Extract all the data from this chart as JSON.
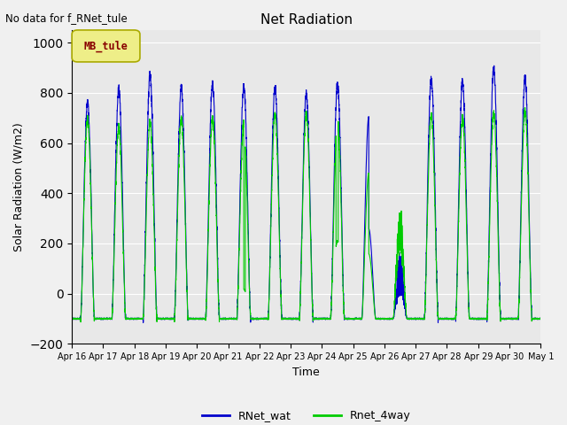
{
  "title": "Net Radiation",
  "xlabel": "Time",
  "ylabel": "Solar Radiation (W/m2)",
  "ylim": [
    -200,
    1050
  ],
  "yticks": [
    -200,
    0,
    200,
    400,
    600,
    800,
    1000
  ],
  "line1_label": "RNet_wat",
  "line1_color": "#0000cc",
  "line2_label": "Rnet_4way",
  "line2_color": "#00cc00",
  "annotation_text": "No data for f_RNet_tule",
  "legend_box_label": "MB_tule",
  "legend_box_color": "#eeee88",
  "legend_box_text_color": "#880000",
  "legend_box_edge_color": "#aaaa00",
  "xticklabels": [
    "Apr 16",
    "Apr 17",
    "Apr 18",
    "Apr 19",
    "Apr 20",
    "Apr 21",
    "Apr 22",
    "Apr 23",
    "Apr 24",
    "Apr 25",
    "Apr 26",
    "Apr 27",
    "Apr 28",
    "Apr 29",
    "Apr 30",
    "May 1"
  ],
  "background_color": "#e8e8e8",
  "fig_background_color": "#f0f0f0",
  "grid_color": "#ffffff",
  "n_days": 15,
  "night_value": -100,
  "day_peaks_rnet_wat": [
    760,
    815,
    870,
    820,
    835,
    825,
    820,
    795,
    835,
    795,
    350,
    855,
    843,
    895,
    860
  ],
  "day_peaks_rnet_4way": [
    695,
    665,
    685,
    695,
    695,
    680,
    715,
    715,
    700,
    545,
    415,
    710,
    700,
    720,
    725
  ],
  "cloudy_days": [
    9,
    10
  ],
  "note_days_rnet_4way_deviate": [
    20,
    21
  ],
  "figsize": [
    6.4,
    4.8
  ],
  "dpi": 100
}
